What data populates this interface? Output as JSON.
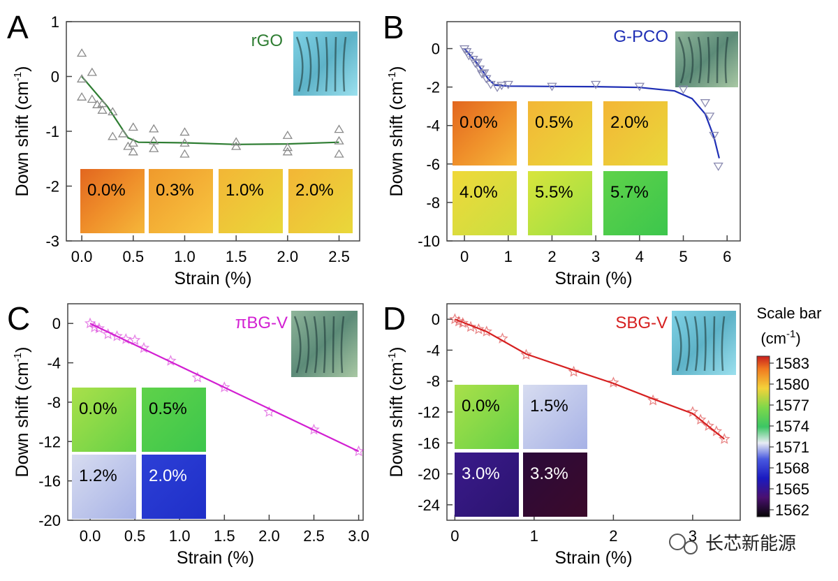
{
  "chart_data": [
    {
      "type": "line",
      "panel": "A",
      "title": "rGO",
      "color": "#2e7d32",
      "xlabel": "Strain (%)",
      "ylabel": "Down shift (cm",
      "ylabel_sup": "-1",
      "ylabel_close": ")",
      "xlim": [
        -0.15,
        2.7
      ],
      "ylim": [
        -3,
        1
      ],
      "xticks": [
        0.0,
        0.5,
        1.0,
        1.5,
        2.0,
        2.5
      ],
      "xtick_labels": [
        "0.0",
        "0.5",
        "1.0",
        "1.5",
        "2.0",
        "2.5"
      ],
      "yticks": [
        1,
        0,
        -1,
        -2,
        -3
      ],
      "ytick_labels": [
        "1",
        "0",
        "-1",
        "-2",
        "-3"
      ],
      "marker": "triangle-up",
      "points": [
        {
          "x": 0.0,
          "y": 0.42
        },
        {
          "x": 0.0,
          "y": -0.05
        },
        {
          "x": 0.0,
          "y": -0.38
        },
        {
          "x": 0.1,
          "y": 0.07
        },
        {
          "x": 0.1,
          "y": -0.42
        },
        {
          "x": 0.15,
          "y": -0.52
        },
        {
          "x": 0.2,
          "y": -0.5
        },
        {
          "x": 0.2,
          "y": -0.62
        },
        {
          "x": 0.3,
          "y": -0.65
        },
        {
          "x": 0.3,
          "y": -1.1
        },
        {
          "x": 0.4,
          "y": -1.05
        },
        {
          "x": 0.45,
          "y": -1.28
        },
        {
          "x": 0.5,
          "y": -0.93
        },
        {
          "x": 0.5,
          "y": -1.22
        },
        {
          "x": 0.5,
          "y": -1.38
        },
        {
          "x": 0.7,
          "y": -0.96
        },
        {
          "x": 0.7,
          "y": -1.18
        },
        {
          "x": 0.7,
          "y": -1.32
        },
        {
          "x": 1.0,
          "y": -1.02
        },
        {
          "x": 1.0,
          "y": -1.22
        },
        {
          "x": 1.0,
          "y": -1.42
        },
        {
          "x": 1.5,
          "y": -1.2
        },
        {
          "x": 1.5,
          "y": -1.28
        },
        {
          "x": 2.0,
          "y": -1.08
        },
        {
          "x": 2.0,
          "y": -1.3
        },
        {
          "x": 2.0,
          "y": -1.38
        },
        {
          "x": 2.5,
          "y": -0.97
        },
        {
          "x": 2.5,
          "y": -1.18
        },
        {
          "x": 2.5,
          "y": -1.42
        }
      ],
      "fit": [
        [
          0.0,
          0.0
        ],
        [
          0.25,
          -0.55
        ],
        [
          0.45,
          -1.12
        ],
        [
          0.55,
          -1.2
        ],
        [
          1.0,
          -1.21
        ],
        [
          1.5,
          -1.24
        ],
        [
          2.0,
          -1.23
        ],
        [
          2.5,
          -1.2
        ]
      ],
      "insets": [
        "0.0%",
        "0.3%",
        "1.0%",
        "2.0%"
      ]
    },
    {
      "type": "line",
      "panel": "B",
      "title": "G-PCO",
      "color": "#1f2fb5",
      "xlabel": "Strain (%)",
      "ylabel": "Down shift (cm",
      "ylabel_sup": "-1",
      "ylabel_close": ")",
      "xlim": [
        -0.4,
        6.3
      ],
      "ylim": [
        -10,
        1.4
      ],
      "xticks": [
        0,
        1,
        2,
        3,
        4,
        5,
        6
      ],
      "xtick_labels": [
        "0",
        "1",
        "2",
        "3",
        "4",
        "5",
        "6"
      ],
      "yticks": [
        0,
        -2,
        -4,
        -6,
        -8,
        -10
      ],
      "ytick_labels": [
        "0",
        "-2",
        "-4",
        "-6",
        "-8",
        "-10"
      ],
      "marker": "triangle-down",
      "points": [
        {
          "x": 0.0,
          "y": 0.0
        },
        {
          "x": 0.05,
          "y": -0.15
        },
        {
          "x": 0.1,
          "y": -0.35
        },
        {
          "x": 0.2,
          "y": -0.55
        },
        {
          "x": 0.25,
          "y": -0.75
        },
        {
          "x": 0.3,
          "y": -0.7
        },
        {
          "x": 0.35,
          "y": -1.05
        },
        {
          "x": 0.4,
          "y": -1.3
        },
        {
          "x": 0.45,
          "y": -1.25
        },
        {
          "x": 0.5,
          "y": -1.55
        },
        {
          "x": 0.6,
          "y": -1.85
        },
        {
          "x": 0.75,
          "y": -2.0
        },
        {
          "x": 0.85,
          "y": -1.9
        },
        {
          "x": 1.0,
          "y": -1.85
        },
        {
          "x": 2.0,
          "y": -1.95
        },
        {
          "x": 3.0,
          "y": -1.85
        },
        {
          "x": 4.0,
          "y": -1.95
        },
        {
          "x": 5.0,
          "y": -2.1
        },
        {
          "x": 5.5,
          "y": -2.8
        },
        {
          "x": 5.6,
          "y": -3.5
        },
        {
          "x": 5.7,
          "y": -4.5
        },
        {
          "x": 5.8,
          "y": -6.1
        }
      ],
      "fit": [
        [
          0.0,
          0.0
        ],
        [
          0.3,
          -0.8
        ],
        [
          0.55,
          -1.6
        ],
        [
          0.7,
          -1.9
        ],
        [
          1.0,
          -1.95
        ],
        [
          2.0,
          -1.97
        ],
        [
          3.0,
          -1.98
        ],
        [
          4.0,
          -2.02
        ],
        [
          4.8,
          -2.2
        ],
        [
          5.2,
          -2.6
        ],
        [
          5.5,
          -3.4
        ],
        [
          5.7,
          -4.6
        ],
        [
          5.82,
          -5.7
        ]
      ],
      "insets": [
        "0.0%",
        "0.5%",
        "2.0%",
        "4.0%",
        "5.5%",
        "5.7%"
      ]
    },
    {
      "type": "line",
      "panel": "C",
      "title": "πBG-V",
      "color": "#d21fd2",
      "xlabel": "Strain (%)",
      "ylabel": "Down shift (cm",
      "ylabel_sup": "-1",
      "ylabel_close": ")",
      "xlim": [
        -0.25,
        3.05
      ],
      "ylim": [
        -20,
        2
      ],
      "xticks": [
        0.0,
        0.5,
        1.0,
        1.5,
        2.0,
        2.5,
        3.0
      ],
      "xtick_labels": [
        "0.0",
        "0.5",
        "1.0",
        "1.5",
        "2.0",
        "2.5",
        "3.0"
      ],
      "yticks": [
        0,
        -4,
        -8,
        -12,
        -16,
        -20
      ],
      "ytick_labels": [
        "0",
        "-4",
        "-8",
        "-12",
        "-16",
        "-20"
      ],
      "marker": "star",
      "points": [
        {
          "x": 0.0,
          "y": 0.0
        },
        {
          "x": 0.05,
          "y": -0.4
        },
        {
          "x": 0.1,
          "y": -0.5
        },
        {
          "x": 0.2,
          "y": -1.1
        },
        {
          "x": 0.3,
          "y": -1.3
        },
        {
          "x": 0.4,
          "y": -1.6
        },
        {
          "x": 0.5,
          "y": -1.7
        },
        {
          "x": 0.6,
          "y": -2.5
        },
        {
          "x": 0.9,
          "y": -3.8
        },
        {
          "x": 1.2,
          "y": -5.5
        },
        {
          "x": 1.5,
          "y": -6.5
        },
        {
          "x": 2.0,
          "y": -9.0
        },
        {
          "x": 2.5,
          "y": -10.8
        },
        {
          "x": 3.0,
          "y": -13.0
        }
      ],
      "fit": [
        [
          0.0,
          0.0
        ],
        [
          3.0,
          -13.0
        ]
      ],
      "insets": [
        "0.0%",
        "0.5%",
        "1.2%",
        "2.0%"
      ]
    },
    {
      "type": "line",
      "panel": "D",
      "title": "SBG-V",
      "color": "#d62020",
      "xlabel": "Strain (%)",
      "ylabel": "Down shift (cm",
      "ylabel_sup": "-1",
      "ylabel_close": ")",
      "xlim": [
        -0.1,
        3.6
      ],
      "ylim": [
        -26,
        2
      ],
      "xticks": [
        0,
        1,
        2,
        3
      ],
      "xtick_labels": [
        "0",
        "1",
        "2",
        "3"
      ],
      "yticks": [
        0,
        -4,
        -8,
        -12,
        -16,
        -20,
        -24
      ],
      "ytick_labels": [
        "0",
        "-4",
        "-8",
        "-12",
        "-16",
        "-20",
        "-24"
      ],
      "marker": "star",
      "points": [
        {
          "x": 0.0,
          "y": 0.0
        },
        {
          "x": 0.05,
          "y": -0.3
        },
        {
          "x": 0.1,
          "y": -0.5
        },
        {
          "x": 0.2,
          "y": -1.0
        },
        {
          "x": 0.3,
          "y": -1.3
        },
        {
          "x": 0.4,
          "y": -1.6
        },
        {
          "x": 0.6,
          "y": -2.5
        },
        {
          "x": 0.9,
          "y": -4.6
        },
        {
          "x": 1.5,
          "y": -6.8
        },
        {
          "x": 2.0,
          "y": -8.2
        },
        {
          "x": 2.5,
          "y": -10.5
        },
        {
          "x": 3.0,
          "y": -12.0
        },
        {
          "x": 3.1,
          "y": -13.0
        },
        {
          "x": 3.2,
          "y": -13.8
        },
        {
          "x": 3.3,
          "y": -14.5
        },
        {
          "x": 3.4,
          "y": -15.5
        }
      ],
      "fit": [
        [
          0.0,
          0.0
        ],
        [
          0.4,
          -1.6
        ],
        [
          0.9,
          -4.5
        ],
        [
          1.5,
          -6.6
        ],
        [
          2.0,
          -8.3
        ],
        [
          2.5,
          -10.3
        ],
        [
          3.0,
          -12.2
        ],
        [
          3.4,
          -15.5
        ]
      ],
      "insets": [
        "0.0%",
        "1.5%",
        "3.0%",
        "3.3%"
      ]
    }
  ],
  "scale_bar": {
    "title_line1": "Scale bar",
    "title_line2": "(cm",
    "title_sup": "-1",
    "title_close": ")",
    "values": [
      "1583",
      "1580",
      "1577",
      "1574",
      "1571",
      "1568",
      "1565",
      "1562"
    ]
  },
  "watermark": "长芯新能源",
  "colors": {
    "rGO": "#2e7d32",
    "G-PCO": "#1f2fb5",
    "πBG-V": "#d21fd2",
    "SBG-V": "#d62020"
  }
}
